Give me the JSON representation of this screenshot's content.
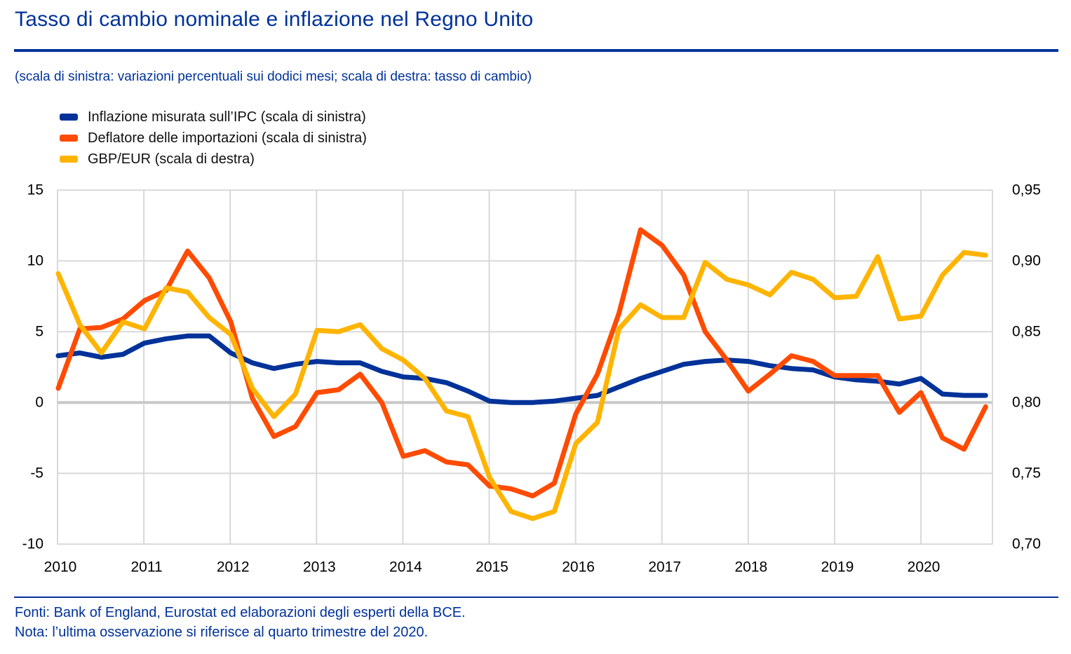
{
  "header": {
    "title": "Tasso di cambio nominale e inflazione nel Regno Unito",
    "subtitle": "(scala di sinistra: variazioni percentuali sui dodici mesi; scala di destra: tasso di cambio)"
  },
  "legend": {
    "items": [
      {
        "label": "Inflazione misurata sull’IPC (scala di sinistra)",
        "color": "#003299"
      },
      {
        "label": "Deflatore delle importazioni (scala di sinistra)",
        "color": "#FF4B00"
      },
      {
        "label": "GBP/EUR (scala di destra)",
        "color": "#FFB400"
      }
    ]
  },
  "chart_data": {
    "type": "line",
    "title": "Tasso di cambio nominale e inflazione nel Regno Unito",
    "grid": true,
    "legend_position": "top-left",
    "x_tick_labels": [
      "2010",
      "2011",
      "2012",
      "2013",
      "2014",
      "2015",
      "2016",
      "2017",
      "2018",
      "2019",
      "2020"
    ],
    "left_axis": {
      "label": "variazioni percentuali sui dodici mesi",
      "min": -10,
      "max": 15,
      "tick_labels": [
        "15",
        "10",
        "5",
        "0",
        "-5",
        "-10"
      ],
      "tick_values": [
        15,
        10,
        5,
        0,
        -5,
        -10
      ]
    },
    "right_axis": {
      "label": "tasso di cambio",
      "min": 0.7,
      "max": 0.95,
      "tick_labels": [
        "0,95",
        "0,90",
        "0,85",
        "0,80",
        "0,75",
        "0,70"
      ],
      "tick_values": [
        0.95,
        0.9,
        0.85,
        0.8,
        0.75,
        0.7
      ]
    },
    "x": [
      "2010Q1",
      "2010Q2",
      "2010Q3",
      "2010Q4",
      "2011Q1",
      "2011Q2",
      "2011Q3",
      "2011Q4",
      "2012Q1",
      "2012Q2",
      "2012Q3",
      "2012Q4",
      "2013Q1",
      "2013Q2",
      "2013Q3",
      "2013Q4",
      "2014Q1",
      "2014Q2",
      "2014Q3",
      "2014Q4",
      "2015Q1",
      "2015Q2",
      "2015Q3",
      "2015Q4",
      "2016Q1",
      "2016Q2",
      "2016Q3",
      "2016Q4",
      "2017Q1",
      "2017Q2",
      "2017Q3",
      "2017Q4",
      "2018Q1",
      "2018Q2",
      "2018Q3",
      "2018Q4",
      "2019Q1",
      "2019Q2",
      "2019Q3",
      "2019Q4",
      "2020Q1",
      "2020Q2",
      "2020Q3",
      "2020Q4"
    ],
    "series": [
      {
        "name": "Inflazione misurata sull’IPC (scala di sinistra)",
        "axis": "left",
        "color": "#003299",
        "values": [
          3.3,
          3.5,
          3.2,
          3.4,
          4.2,
          4.5,
          4.7,
          4.7,
          3.5,
          2.8,
          2.4,
          2.7,
          2.9,
          2.8,
          2.8,
          2.2,
          1.8,
          1.7,
          1.4,
          0.8,
          0.1,
          0.0,
          0.0,
          0.1,
          0.3,
          0.5,
          1.1,
          1.7,
          2.2,
          2.7,
          2.9,
          3.0,
          2.9,
          2.6,
          2.4,
          2.3,
          1.8,
          1.6,
          1.5,
          1.3,
          1.7,
          0.6,
          0.5,
          0.5
        ]
      },
      {
        "name": "Deflatore delle importazioni (scala di sinistra)",
        "axis": "left",
        "color": "#FF4B00",
        "values": [
          1.0,
          5.2,
          5.3,
          5.9,
          7.2,
          7.9,
          10.7,
          8.8,
          5.7,
          0.3,
          -2.4,
          -1.7,
          0.7,
          0.9,
          2.0,
          0.0,
          -3.8,
          -3.4,
          -4.2,
          -4.4,
          -5.9,
          -6.1,
          -6.6,
          -5.7,
          -0.8,
          2.0,
          6.3,
          12.2,
          11.1,
          9.0,
          5.0,
          3.0,
          0.8,
          2.0,
          3.3,
          2.9,
          1.9,
          1.9,
          1.9,
          -0.7,
          0.7,
          -2.5,
          -3.3,
          -0.3
        ]
      },
      {
        "name": "GBP/EUR (scala di destra)",
        "axis": "right",
        "color": "#FFB400",
        "values": [
          0.891,
          0.855,
          0.835,
          0.857,
          0.852,
          0.881,
          0.878,
          0.86,
          0.848,
          0.81,
          0.79,
          0.806,
          0.851,
          0.85,
          0.855,
          0.838,
          0.83,
          0.817,
          0.794,
          0.79,
          0.747,
          0.723,
          0.718,
          0.723,
          0.771,
          0.786,
          0.852,
          0.869,
          0.86,
          0.86,
          0.899,
          0.887,
          0.883,
          0.876,
          0.892,
          0.887,
          0.874,
          0.875,
          0.903,
          0.859,
          0.861,
          0.89,
          0.906,
          0.904
        ]
      }
    ]
  },
  "footer": {
    "fonti": "Fonti: Bank of England, Eurostat ed elaborazioni degli esperti della BCE.",
    "nota": "Nota: l’ultima osservazione si riferisce al quarto trimestre del 2020."
  },
  "colors": {
    "accent_blue": "#003299",
    "series_inflation": "#003299",
    "series_import_deflator": "#FF4B00",
    "series_gbpeur": "#FFB400",
    "gridline": "#d9d9d9",
    "zero_line": "#c8c8c8",
    "axis_text": "#000000"
  }
}
